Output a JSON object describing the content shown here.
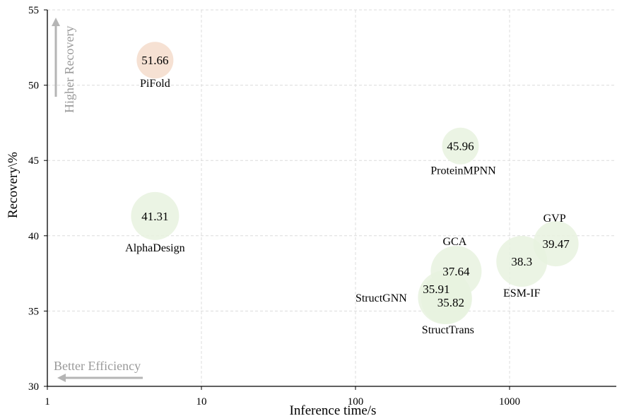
{
  "chart_data": {
    "type": "scatter",
    "title": "",
    "xlabel": "Inference time/s",
    "ylabel": "Recovery\\%",
    "xscale": "log",
    "xlim": [
      1,
      5000
    ],
    "ylim": [
      30,
      55
    ],
    "grid": true,
    "x_ticks": [
      1,
      10,
      100,
      1000
    ],
    "x_tick_labels": [
      "1",
      "10",
      "100",
      "1000"
    ],
    "y_ticks": [
      30,
      35,
      40,
      45,
      50,
      55
    ],
    "y_tick_labels": [
      "30",
      "35",
      "40",
      "45",
      "50",
      "55"
    ],
    "points": [
      {
        "name": "PiFold",
        "x": 5,
        "y": 51.66,
        "value_label": "51.66",
        "color": "#f4dccb"
      },
      {
        "name": "ProteinMPNN",
        "x": 480,
        "y": 45.96,
        "value_label": "45.96",
        "color": "#e7f2df"
      },
      {
        "name": "AlphaDesign",
        "x": 5,
        "y": 41.31,
        "value_label": "41.31",
        "color": "#e7f2df"
      },
      {
        "name": "GVP",
        "x": 2000,
        "y": 39.47,
        "value_label": "39.47",
        "color": "#e7f2df"
      },
      {
        "name": "ESM-IF",
        "x": 1200,
        "y": 38.3,
        "value_label": "38.3",
        "color": "#e7f2df"
      },
      {
        "name": "GCA",
        "x": 450,
        "y": 37.64,
        "value_label": "37.64",
        "color": "#e7f2df"
      },
      {
        "name": "StructGNN",
        "x": 380,
        "y": 35.91,
        "value_label": "35.91",
        "color": "#e7f2df"
      },
      {
        "name": "StructTrans",
        "x": 390,
        "y": 35.82,
        "value_label": "35.82",
        "color": "#e7f2df"
      }
    ],
    "annotations": {
      "higher_recovery": "Higher Recovery",
      "better_efficiency": "Better Efficiency"
    }
  }
}
